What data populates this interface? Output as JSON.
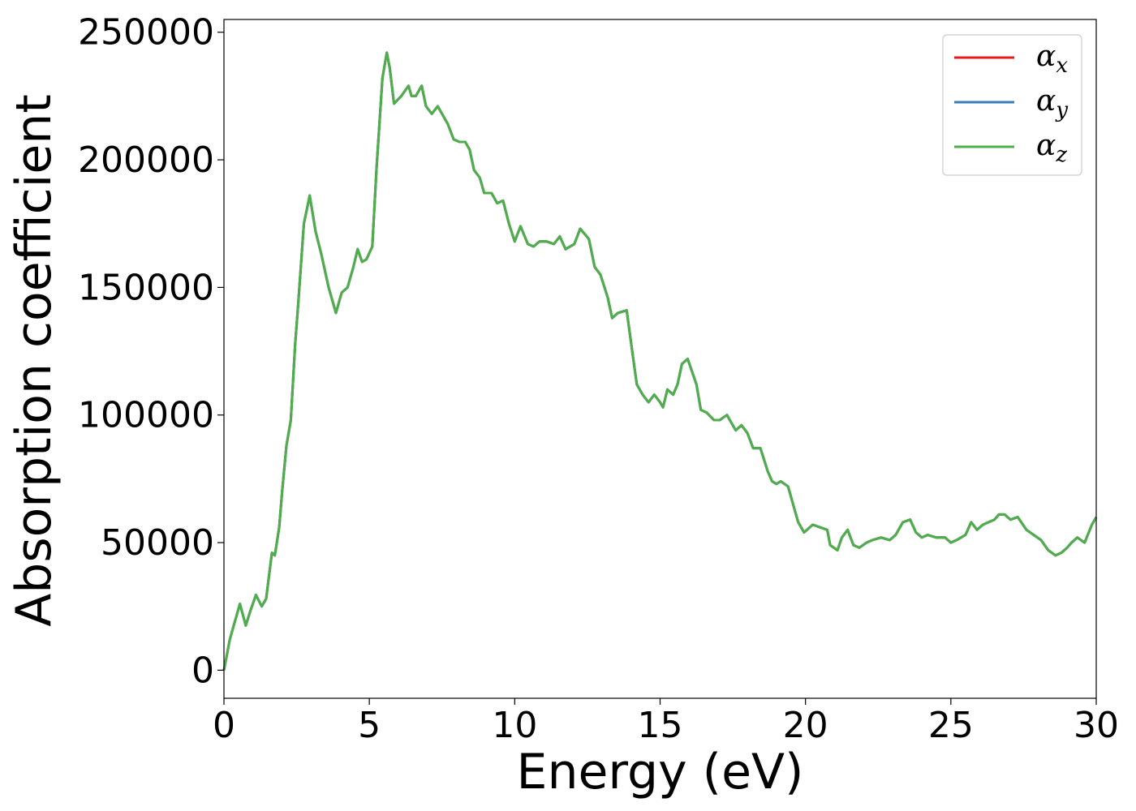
{
  "chart_data": {
    "type": "line",
    "title": "",
    "xlabel": "Energy (eV)",
    "ylabel": "Absorption coefficient",
    "xlim": [
      0,
      30
    ],
    "ylim": [
      -11000,
      255000
    ],
    "x_ticks": [
      0,
      5,
      10,
      15,
      20,
      25,
      30
    ],
    "x_tick_labels": [
      "0",
      "5",
      "10",
      "15",
      "20",
      "25",
      "30"
    ],
    "y_ticks": [
      0,
      50000,
      100000,
      150000,
      200000,
      250000
    ],
    "y_tick_labels": [
      "0",
      "50000",
      "100000",
      "150000",
      "200000",
      "250000"
    ],
    "grid": false,
    "legend_position": "top-right",
    "series": [
      {
        "name": "α",
        "subscript": "x",
        "color": "#e41a1c",
        "values": "shared"
      },
      {
        "name": "α",
        "subscript": "y",
        "color": "#377eb8",
        "values": "shared"
      },
      {
        "name": "α",
        "subscript": "z",
        "color": "#4daf4a",
        "values": "shared"
      }
    ],
    "x": [
      0,
      0.2,
      0.35,
      0.55,
      0.75,
      0.9,
      1.1,
      1.3,
      1.45,
      1.65,
      1.75,
      1.9,
      2.0,
      2.15,
      2.3,
      2.45,
      2.55,
      2.75,
      2.95,
      3.15,
      3.35,
      3.6,
      3.85,
      4.05,
      4.25,
      4.45,
      4.6,
      4.75,
      4.9,
      5.1,
      5.25,
      5.45,
      5.6,
      5.7,
      5.85,
      6.1,
      6.35,
      6.45,
      6.6,
      6.8,
      6.95,
      7.15,
      7.35,
      7.5,
      7.7,
      7.9,
      8.1,
      8.3,
      8.45,
      8.6,
      8.8,
      8.95,
      9.2,
      9.4,
      9.6,
      9.8,
      10.0,
      10.2,
      10.45,
      10.65,
      10.85,
      11.1,
      11.35,
      11.55,
      11.75,
      12.05,
      12.25,
      12.55,
      12.75,
      12.95,
      13.2,
      13.35,
      13.55,
      13.85,
      14.1,
      14.2,
      14.4,
      14.6,
      14.8,
      15.0,
      15.1,
      15.25,
      15.45,
      15.6,
      15.75,
      15.95,
      16.25,
      16.4,
      16.6,
      16.85,
      17.05,
      17.3,
      17.6,
      17.8,
      18.0,
      18.2,
      18.45,
      18.7,
      18.85,
      19.0,
      19.15,
      19.4,
      19.6,
      19.75,
      19.95,
      20.25,
      20.5,
      20.75,
      20.85,
      21.1,
      21.25,
      21.45,
      21.65,
      21.85,
      22.1,
      22.3,
      22.6,
      22.9,
      23.1,
      23.35,
      23.6,
      23.8,
      24.0,
      24.2,
      24.5,
      24.8,
      25.0,
      25.2,
      25.5,
      25.7,
      25.9,
      26.1,
      26.3,
      26.5,
      26.65,
      26.85,
      27.05,
      27.3,
      27.6,
      27.85,
      28.1,
      28.35,
      28.6,
      28.8,
      29.0,
      29.15,
      29.35,
      29.6,
      29.85,
      30.0
    ],
    "values": [
      0,
      12000,
      18000,
      26000,
      17500,
      23000,
      29500,
      25000,
      28000,
      46000,
      45000,
      56000,
      70000,
      88000,
      98000,
      128000,
      143000,
      175000,
      186000,
      172000,
      163000,
      150000,
      140000,
      148000,
      150000,
      158000,
      165000,
      160000,
      161000,
      166000,
      197000,
      232000,
      242000,
      236000,
      222000,
      225000,
      229000,
      225000,
      225000,
      229000,
      221000,
      218000,
      221000,
      218000,
      214000,
      208000,
      207000,
      207000,
      204000,
      196000,
      193000,
      187000,
      187000,
      183000,
      184000,
      175000,
      168000,
      174000,
      167000,
      166000,
      168000,
      168000,
      167000,
      170000,
      165000,
      167000,
      173000,
      169000,
      158000,
      155000,
      146000,
      138000,
      140000,
      141000,
      120000,
      112000,
      108000,
      105000,
      108000,
      105000,
      103000,
      110000,
      108000,
      112000,
      120000,
      122000,
      112000,
      102000,
      101000,
      98000,
      98000,
      100000,
      94000,
      96000,
      93000,
      87000,
      87000,
      78000,
      74000,
      73000,
      74000,
      72000,
      64000,
      58000,
      54000,
      57000,
      56000,
      55000,
      49000,
      47000,
      52000,
      55000,
      49000,
      48000,
      50000,
      51000,
      52000,
      51000,
      53000,
      58000,
      59000,
      54000,
      52000,
      53000,
      52000,
      52000,
      50000,
      51000,
      53000,
      58000,
      55000,
      57000,
      58000,
      59000,
      61000,
      61000,
      59000,
      60000,
      55000,
      53000,
      51000,
      47000,
      45000,
      46000,
      48000,
      50000,
      52000,
      50000,
      57000,
      60000
    ]
  }
}
